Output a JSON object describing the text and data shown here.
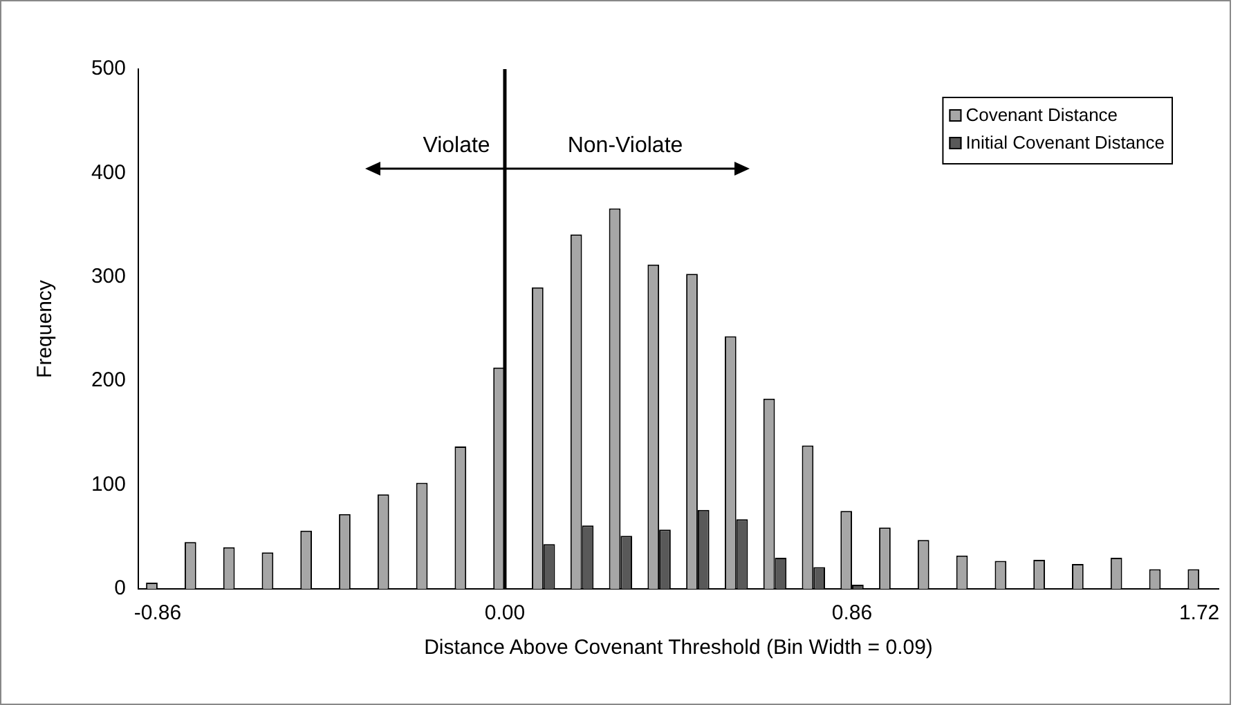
{
  "chart_data": {
    "type": "bar",
    "xlabel": "Distance Above Covenant Threshold (Bin Width = 0.09)",
    "ylabel": "Frequency",
    "categories": [
      "-0.86",
      null,
      null,
      null,
      null,
      null,
      null,
      null,
      null,
      "0.00",
      null,
      null,
      null,
      null,
      null,
      null,
      null,
      null,
      "0.86",
      null,
      null,
      null,
      null,
      null,
      null,
      null,
      null,
      "1.72"
    ],
    "series": [
      {
        "name": "Covenant Distance",
        "color": "#a6a6a6",
        "values": [
          6,
          45,
          40,
          35,
          56,
          72,
          91,
          102,
          137,
          213,
          290,
          341,
          366,
          312,
          303,
          243,
          183,
          138,
          75,
          59,
          47,
          32,
          27,
          28,
          24,
          30,
          19,
          19
        ]
      },
      {
        "name": "Initial Covenant Distance",
        "color": "#595959",
        "values": [
          0,
          0,
          0,
          0,
          0,
          0,
          0,
          0,
          0,
          0,
          43,
          61,
          51,
          57,
          76,
          67,
          30,
          21,
          4,
          null,
          0,
          0,
          0,
          0,
          0,
          0,
          0,
          0
        ]
      }
    ],
    "ylim": [
      0,
      500
    ],
    "yticks": [
      0,
      100,
      200,
      300,
      400,
      500
    ],
    "grid": false,
    "legend": "top right",
    "ref_lines": [
      {
        "axis": "x",
        "value": "0.00",
        "color": "#000000"
      }
    ],
    "annotations": [
      "Violate",
      "Non-Violate"
    ]
  }
}
